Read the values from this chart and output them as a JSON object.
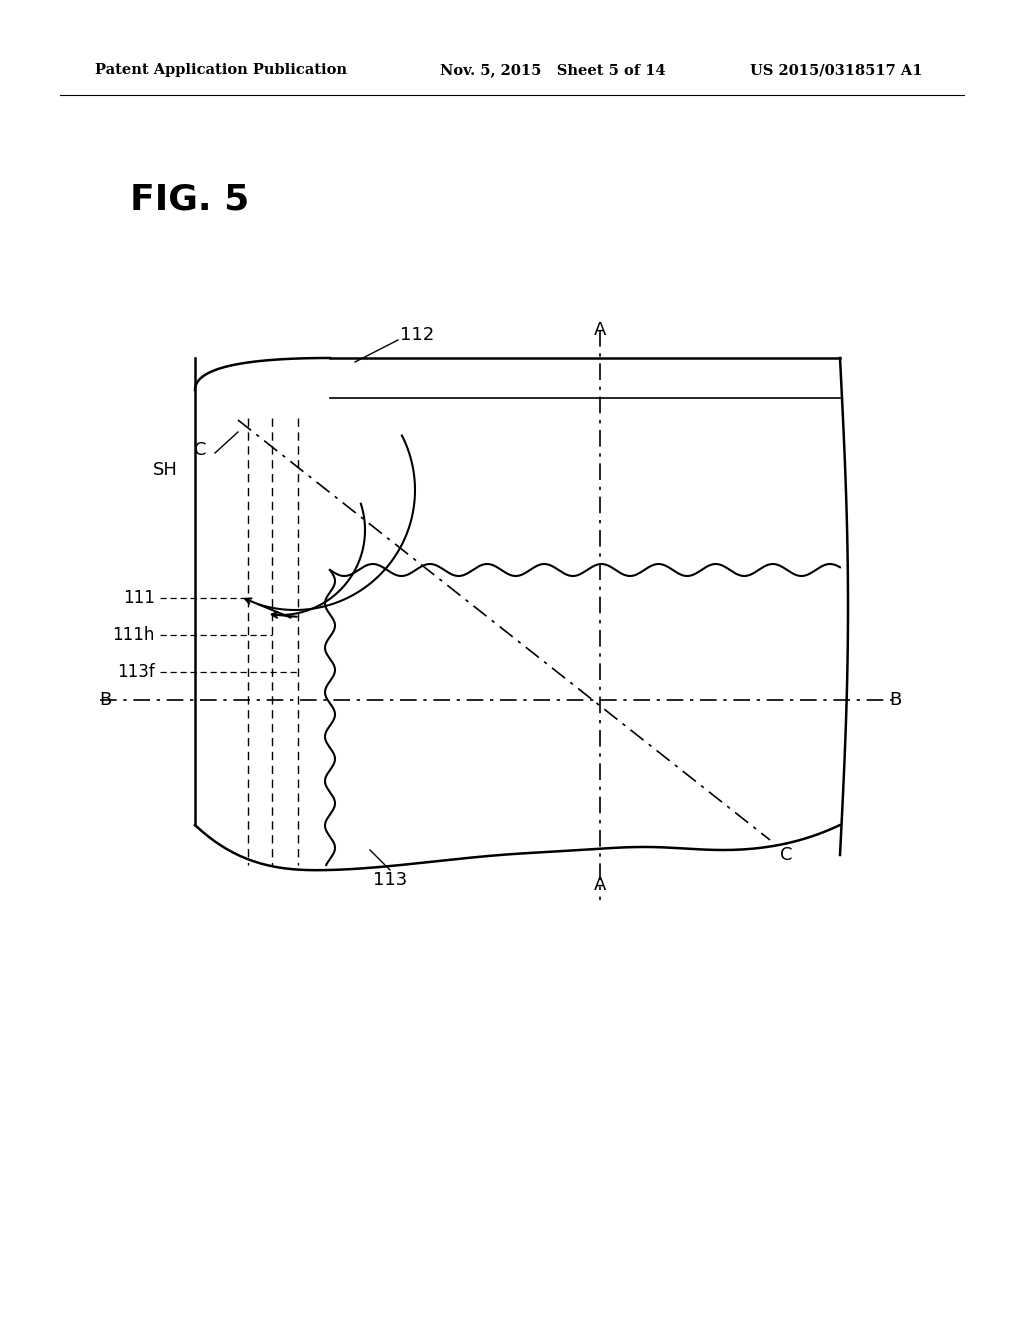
{
  "bg_color": "#ffffff",
  "fig_label": "FIG. 5",
  "header_left": "Patent Application Publication",
  "header_mid": "Nov. 5, 2015   Sheet 5 of 14",
  "header_right": "US 2015/0318517 A1"
}
